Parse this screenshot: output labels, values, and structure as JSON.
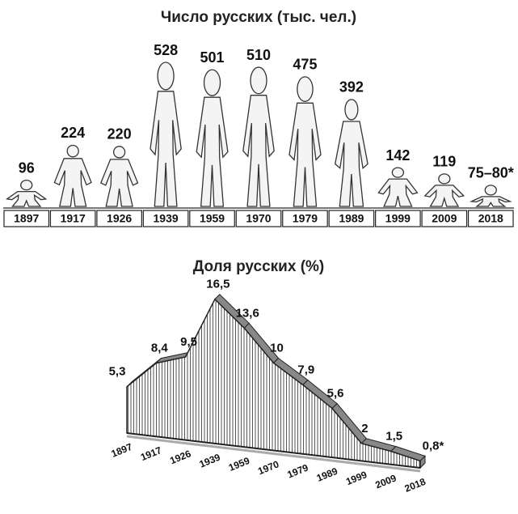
{
  "chart_data": [
    {
      "type": "pictogram",
      "title": "Число русских (тыс. чел.)",
      "categories": [
        "1897",
        "1917",
        "1926",
        "1939",
        "1959",
        "1970",
        "1979",
        "1989",
        "1999",
        "2009",
        "2018"
      ],
      "values": [
        96,
        224,
        220,
        528,
        501,
        510,
        475,
        392,
        142,
        119,
        77.5
      ],
      "value_labels": [
        "96",
        "224",
        "220",
        "528",
        "501",
        "510",
        "475",
        "392",
        "142",
        "119",
        "75–80*"
      ],
      "color": "#f4f4f4"
    },
    {
      "type": "area",
      "title": "Доля русских (%)",
      "categories": [
        "1897",
        "1917",
        "1926",
        "1939",
        "1959",
        "1970",
        "1979",
        "1989",
        "1999",
        "2009",
        "2018"
      ],
      "values": [
        5.3,
        8.4,
        9.5,
        16.5,
        13.6,
        10,
        7.9,
        5.6,
        2,
        1.5,
        0.8
      ],
      "value_labels": [
        "5,3",
        "8,4",
        "9,5",
        "16,5",
        "13,6",
        "10",
        "7,9",
        "5,6",
        "2",
        "1,5",
        "0,8*"
      ],
      "color": "#888888"
    }
  ]
}
